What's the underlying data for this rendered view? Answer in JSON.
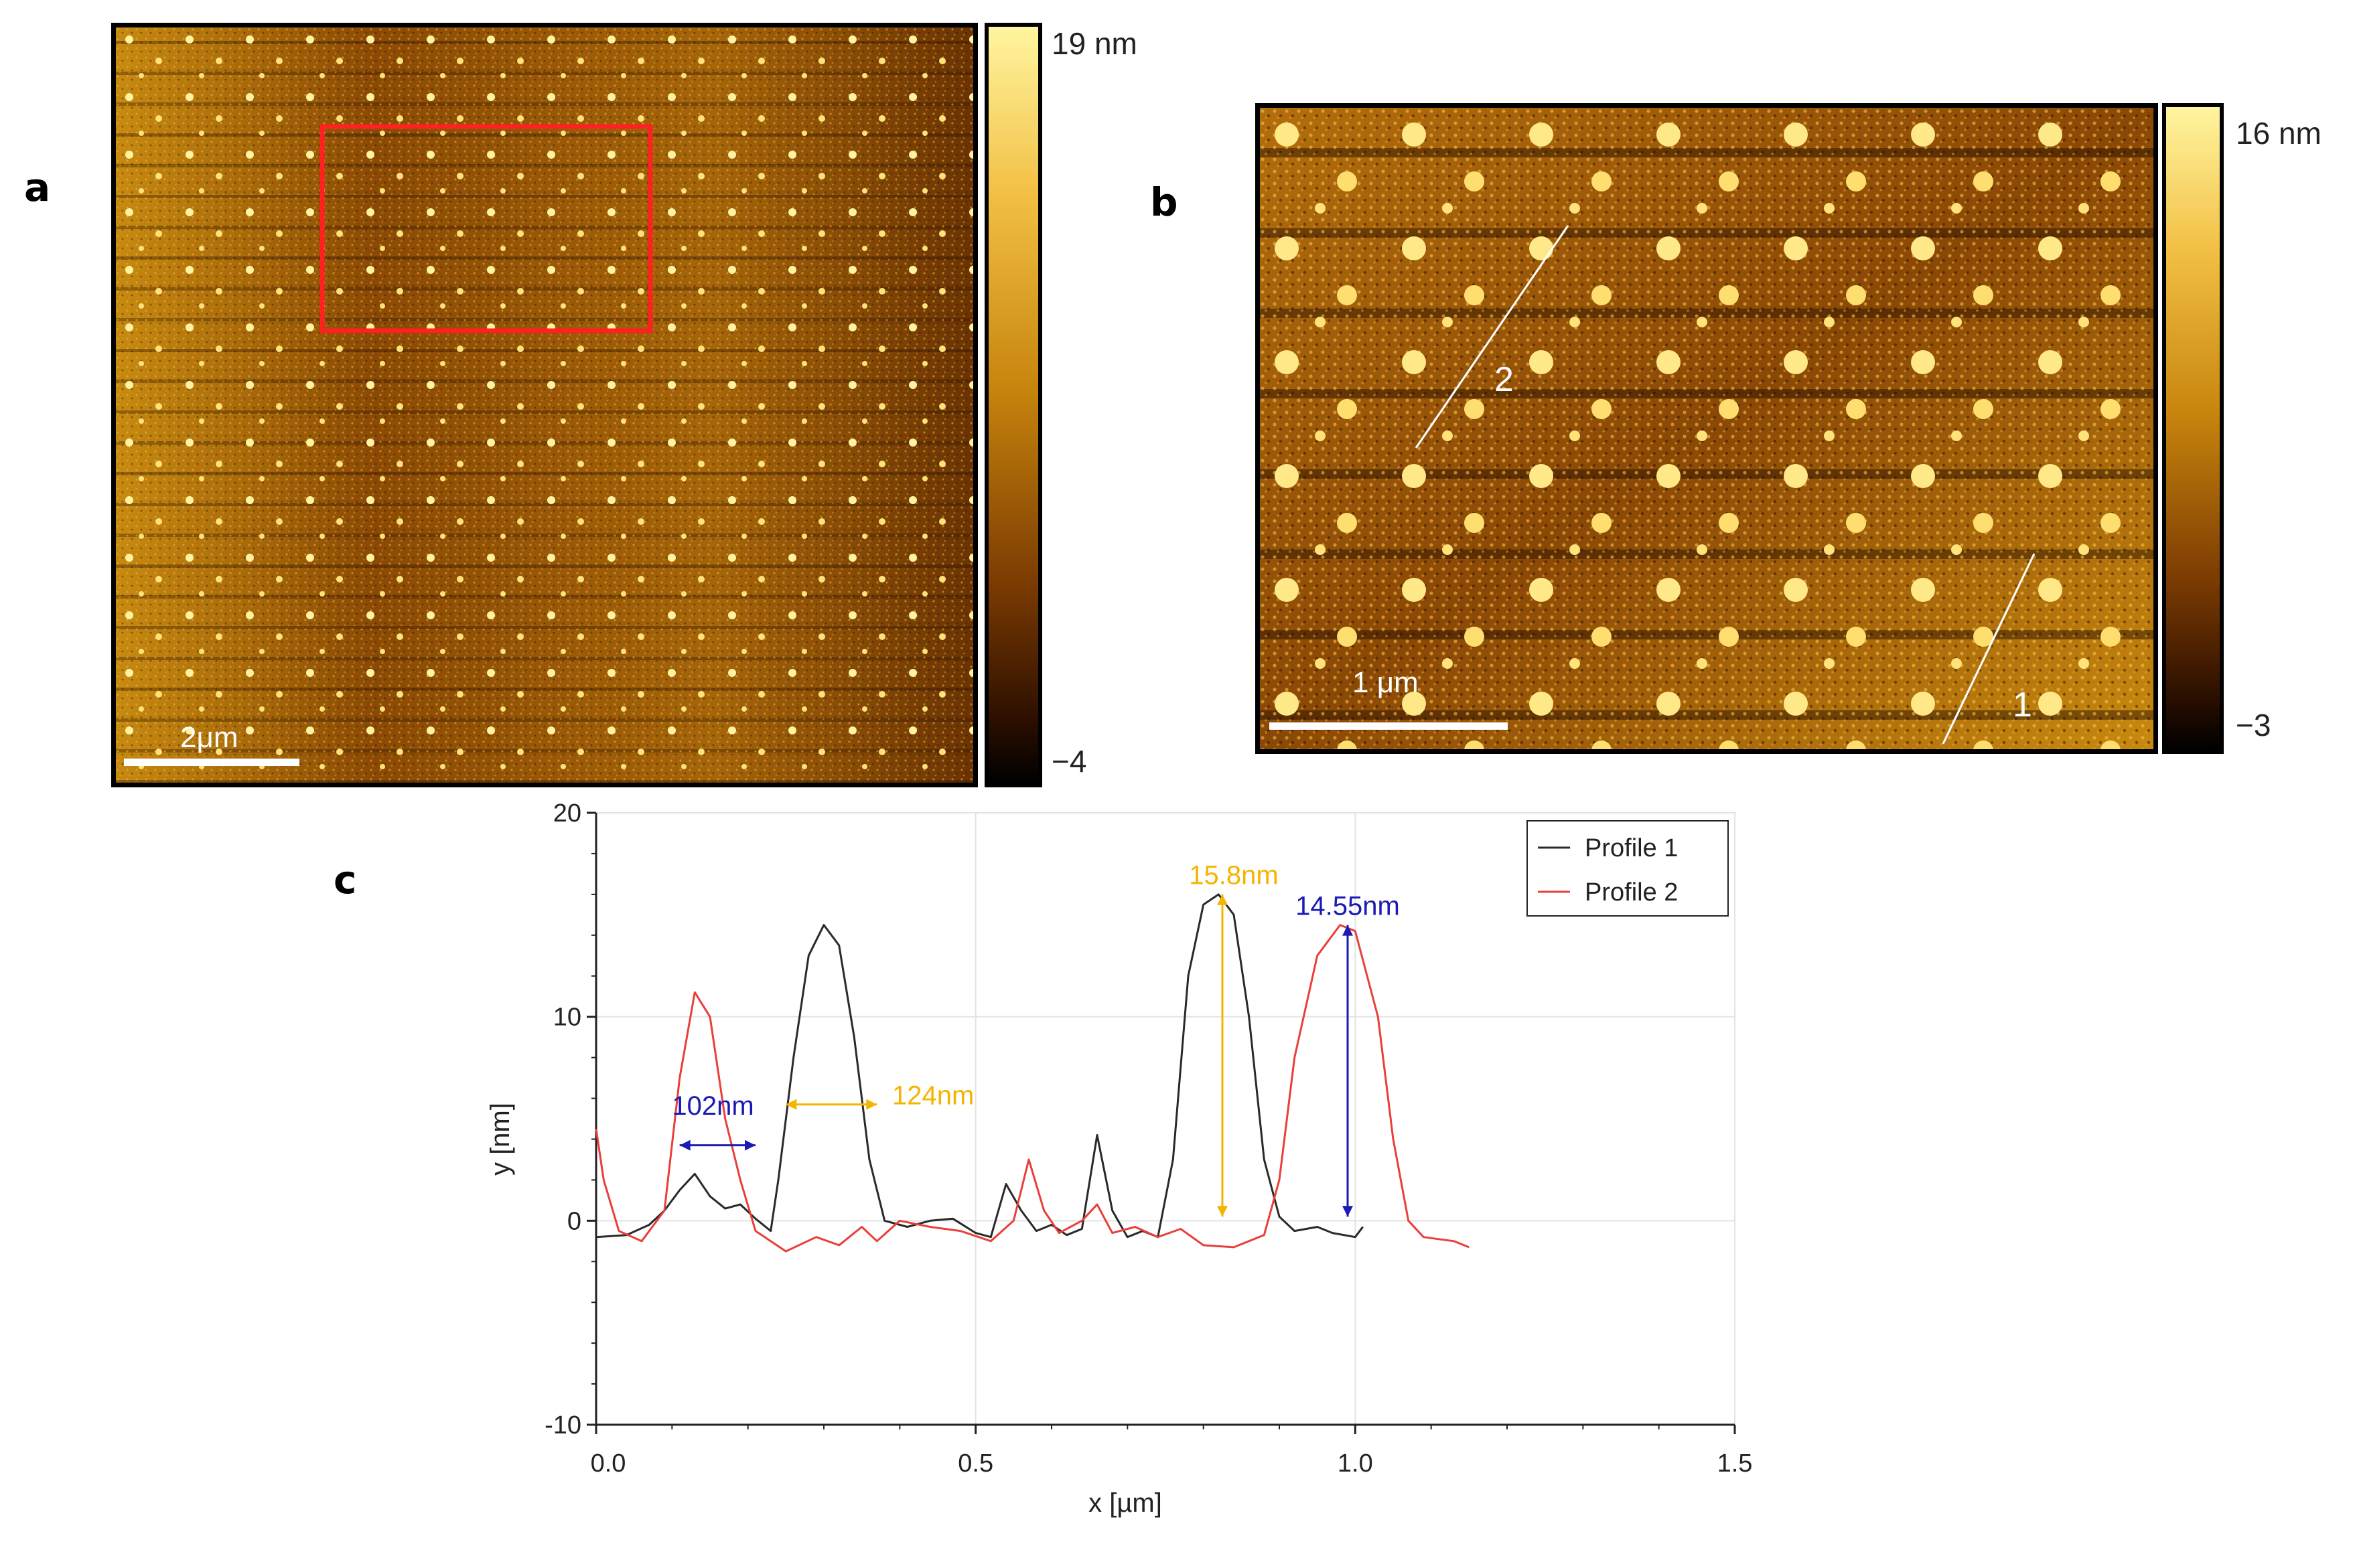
{
  "panels": {
    "a": {
      "letter": "a",
      "colorbar_max": "19 nm",
      "colorbar_min": "−4",
      "scale_bar_label": "2μm"
    },
    "b": {
      "letter": "b",
      "colorbar_max": "16 nm",
      "colorbar_min": "−3",
      "scale_bar_label": "1 μm",
      "profile_line_labels": [
        "1",
        "2"
      ]
    },
    "c": {
      "letter": "c"
    }
  },
  "colors": {
    "profile1": "#2a2a2a",
    "profile2": "#e8403a",
    "annotation_blue": "#1a1ab4",
    "annotation_yellow": "#f5b400",
    "selection_box": "#ff2020",
    "afm_dark": "#2b1200",
    "afm_bright": "#fff3a0"
  },
  "chart_data": {
    "type": "line",
    "xlabel": "x [µm]",
    "ylabel": "y [nm]",
    "xlim": [
      0,
      1.5
    ],
    "ylim": [
      -10,
      20
    ],
    "x_ticks": [
      "0.0",
      "0.5",
      "1.0",
      "1.5"
    ],
    "y_ticks": [
      "-10",
      "0",
      "10",
      "20"
    ],
    "grid": true,
    "legend_position": "top-right",
    "series": [
      {
        "name": "Profile 1",
        "color": "#2a2a2a",
        "points": [
          [
            0.0,
            -0.8
          ],
          [
            0.04,
            -0.7
          ],
          [
            0.07,
            -0.2
          ],
          [
            0.09,
            0.5
          ],
          [
            0.11,
            1.5
          ],
          [
            0.13,
            2.3
          ],
          [
            0.15,
            1.2
          ],
          [
            0.17,
            0.6
          ],
          [
            0.19,
            0.8
          ],
          [
            0.21,
            0.1
          ],
          [
            0.23,
            -0.5
          ],
          [
            0.24,
            2.0
          ],
          [
            0.26,
            8.0
          ],
          [
            0.28,
            13.0
          ],
          [
            0.3,
            14.5
          ],
          [
            0.32,
            13.5
          ],
          [
            0.34,
            9.0
          ],
          [
            0.36,
            3.0
          ],
          [
            0.38,
            0.0
          ],
          [
            0.41,
            -0.3
          ],
          [
            0.44,
            0.0
          ],
          [
            0.47,
            0.1
          ],
          [
            0.5,
            -0.6
          ],
          [
            0.52,
            -0.8
          ],
          [
            0.54,
            1.8
          ],
          [
            0.56,
            0.5
          ],
          [
            0.58,
            -0.5
          ],
          [
            0.6,
            -0.2
          ],
          [
            0.62,
            -0.7
          ],
          [
            0.64,
            -0.4
          ],
          [
            0.66,
            4.2
          ],
          [
            0.68,
            0.5
          ],
          [
            0.7,
            -0.8
          ],
          [
            0.72,
            -0.5
          ],
          [
            0.74,
            -0.8
          ],
          [
            0.76,
            3.0
          ],
          [
            0.78,
            12.0
          ],
          [
            0.8,
            15.5
          ],
          [
            0.82,
            16.0
          ],
          [
            0.84,
            15.0
          ],
          [
            0.86,
            10.0
          ],
          [
            0.88,
            3.0
          ],
          [
            0.9,
            0.2
          ],
          [
            0.92,
            -0.5
          ],
          [
            0.95,
            -0.3
          ],
          [
            0.97,
            -0.6
          ],
          [
            1.0,
            -0.8
          ],
          [
            1.01,
            -0.3
          ]
        ]
      },
      {
        "name": "Profile 2",
        "color": "#e8403a",
        "points": [
          [
            0.0,
            4.5
          ],
          [
            0.01,
            2.0
          ],
          [
            0.03,
            -0.5
          ],
          [
            0.06,
            -1.0
          ],
          [
            0.09,
            0.5
          ],
          [
            0.11,
            7.0
          ],
          [
            0.13,
            11.2
          ],
          [
            0.15,
            10.0
          ],
          [
            0.17,
            5.0
          ],
          [
            0.19,
            2.0
          ],
          [
            0.21,
            -0.5
          ],
          [
            0.25,
            -1.5
          ],
          [
            0.29,
            -0.8
          ],
          [
            0.32,
            -1.2
          ],
          [
            0.35,
            -0.3
          ],
          [
            0.37,
            -1.0
          ],
          [
            0.4,
            0.0
          ],
          [
            0.44,
            -0.3
          ],
          [
            0.48,
            -0.5
          ],
          [
            0.52,
            -1.0
          ],
          [
            0.55,
            0.0
          ],
          [
            0.57,
            3.0
          ],
          [
            0.59,
            0.5
          ],
          [
            0.61,
            -0.6
          ],
          [
            0.64,
            0.0
          ],
          [
            0.66,
            0.8
          ],
          [
            0.68,
            -0.6
          ],
          [
            0.71,
            -0.3
          ],
          [
            0.74,
            -0.8
          ],
          [
            0.77,
            -0.4
          ],
          [
            0.8,
            -1.2
          ],
          [
            0.84,
            -1.3
          ],
          [
            0.88,
            -0.7
          ],
          [
            0.9,
            2.0
          ],
          [
            0.92,
            8.0
          ],
          [
            0.95,
            13.0
          ],
          [
            0.98,
            14.5
          ],
          [
            1.0,
            14.2
          ],
          [
            1.03,
            10.0
          ],
          [
            1.05,
            4.0
          ],
          [
            1.07,
            0.0
          ],
          [
            1.09,
            -0.8
          ],
          [
            1.11,
            -0.9
          ],
          [
            1.13,
            -1.0
          ],
          [
            1.15,
            -1.3
          ]
        ]
      }
    ],
    "annotations": [
      {
        "text": "102nm",
        "color": "#1a1ab4",
        "arrow": "horizontal",
        "from": [
          0.11,
          3.7
        ],
        "to": [
          0.21,
          3.7
        ],
        "label_at": [
          0.1,
          5.2
        ]
      },
      {
        "text": "124nm",
        "color": "#f5b400",
        "arrow": "horizontal",
        "from": [
          0.25,
          5.7
        ],
        "to": [
          0.37,
          5.7
        ],
        "label_at": [
          0.39,
          5.7
        ]
      },
      {
        "text": "15.8nm",
        "color": "#f5b400",
        "arrow": "vertical",
        "from": [
          0.825,
          16.0
        ],
        "to": [
          0.825,
          0.2
        ],
        "label_at": [
          0.84,
          16.5
        ]
      },
      {
        "text": "14.55nm",
        "color": "#1a1ab4",
        "arrow": "vertical",
        "from": [
          0.99,
          14.5
        ],
        "to": [
          0.99,
          0.2
        ],
        "label_at": [
          0.99,
          15.0
        ]
      }
    ]
  }
}
